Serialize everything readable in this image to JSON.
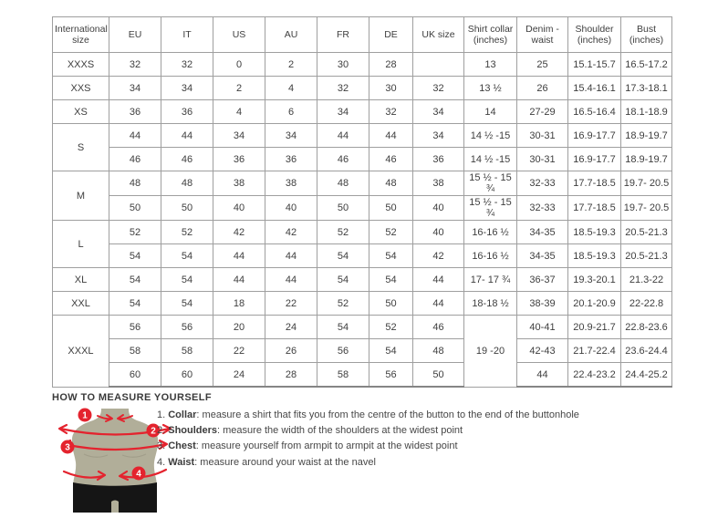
{
  "table": {
    "columns": [
      "International size",
      "EU",
      "IT",
      "US",
      "AU",
      "FR",
      "DE",
      "UK size",
      "Shirt collar (inches)",
      "Denim - waist",
      "Shoulder (inches)",
      "Bust (inches)"
    ],
    "rows": [
      [
        {
          "t": "XXXS"
        },
        "32",
        "32",
        "0",
        "2",
        "30",
        "28",
        "",
        "13",
        "25",
        "15.1-15.7",
        "16.5-17.2"
      ],
      [
        {
          "t": "XXS"
        },
        "34",
        "34",
        "2",
        "4",
        "32",
        "30",
        "32",
        "13 ½",
        "26",
        "15.4-16.1",
        "17.3-18.1"
      ],
      [
        {
          "t": "XS"
        },
        "36",
        "36",
        "4",
        "6",
        "34",
        "32",
        "34",
        "14",
        "27-29",
        "16.5-16.4",
        "18.1-18.9"
      ],
      [
        {
          "t": "S",
          "rs": 2
        },
        "44",
        "44",
        "34",
        "34",
        "44",
        "44",
        "34",
        "14 ½ -15",
        "30-31",
        "16.9-17.7",
        "18.9-19.7"
      ],
      [
        "46",
        "46",
        "36",
        "36",
        "46",
        "46",
        "36",
        "14 ½ -15",
        "30-31",
        "16.9-17.7",
        "18.9-19.7"
      ],
      [
        {
          "t": "M",
          "rs": 2
        },
        "48",
        "48",
        "38",
        "38",
        "48",
        "48",
        "38",
        "15 ½ - 15 ¾",
        "32-33",
        "17.7-18.5",
        "19.7- 20.5"
      ],
      [
        "50",
        "50",
        "40",
        "40",
        "50",
        "50",
        "40",
        "15 ½ - 15 ¾",
        "32-33",
        "17.7-18.5",
        "19.7- 20.5"
      ],
      [
        {
          "t": "L",
          "rs": 2
        },
        "52",
        "52",
        "42",
        "42",
        "52",
        "52",
        "40",
        "16-16 ½",
        "34-35",
        "18.5-19.3",
        "20.5-21.3"
      ],
      [
        "54",
        "54",
        "44",
        "44",
        "54",
        "54",
        "42",
        "16-16 ½",
        "34-35",
        "18.5-19.3",
        "20.5-21.3"
      ],
      [
        {
          "t": "XL"
        },
        "54",
        "54",
        "44",
        "44",
        "54",
        "54",
        "44",
        "17- 17 ¾",
        "36-37",
        "19.3-20.1",
        "21.3-22"
      ],
      [
        {
          "t": "XXL"
        },
        "54",
        "54",
        "18",
        "22",
        "52",
        "50",
        "44",
        "18-18 ½",
        "38-39",
        "20.1-20.9",
        "22-22.8"
      ],
      [
        {
          "t": "XXXL",
          "rs": 3
        },
        "56",
        "56",
        "20",
        "24",
        "54",
        "52",
        "46",
        {
          "t": "19 -20",
          "rs": 3
        },
        "40-41",
        "20.9-21.7",
        "22.8-23.6"
      ],
      [
        "58",
        "58",
        "22",
        "26",
        "56",
        "54",
        "48",
        "42-43",
        "21.7-22.4",
        "23.6-24.4"
      ],
      [
        "60",
        "60",
        "24",
        "28",
        "58",
        "56",
        "50",
        "44",
        "22.4-23.2",
        "24.4-25.2"
      ]
    ]
  },
  "measure": {
    "heading": "HOW TO MEASURE YOURSELF",
    "items": [
      {
        "num": "1. ",
        "label": "Collar",
        "text": ": measure a shirt that fits you from the centre of the button to the end of the buttonhole"
      },
      {
        "num": "2. ",
        "label": "Shoulders",
        "text": ": measure the width of the shoulders at the widest point"
      },
      {
        "num": "3. ",
        "label": "Chest",
        "text": ": measure yourself from armpit to armpit at the widest point"
      },
      {
        "num": "4. ",
        "label": "Waist",
        "text": ": measure around your waist at the navel"
      }
    ],
    "badges": [
      "1",
      "2",
      "3",
      "4"
    ]
  },
  "colors": {
    "accent_red": "#e4232e",
    "torso": "#b1ae99",
    "torso_shade": "#a3a08b",
    "shorts": "#151515",
    "border": "#9f9f9f",
    "border_bottom": "#858585",
    "text": "#3e3e3e"
  }
}
